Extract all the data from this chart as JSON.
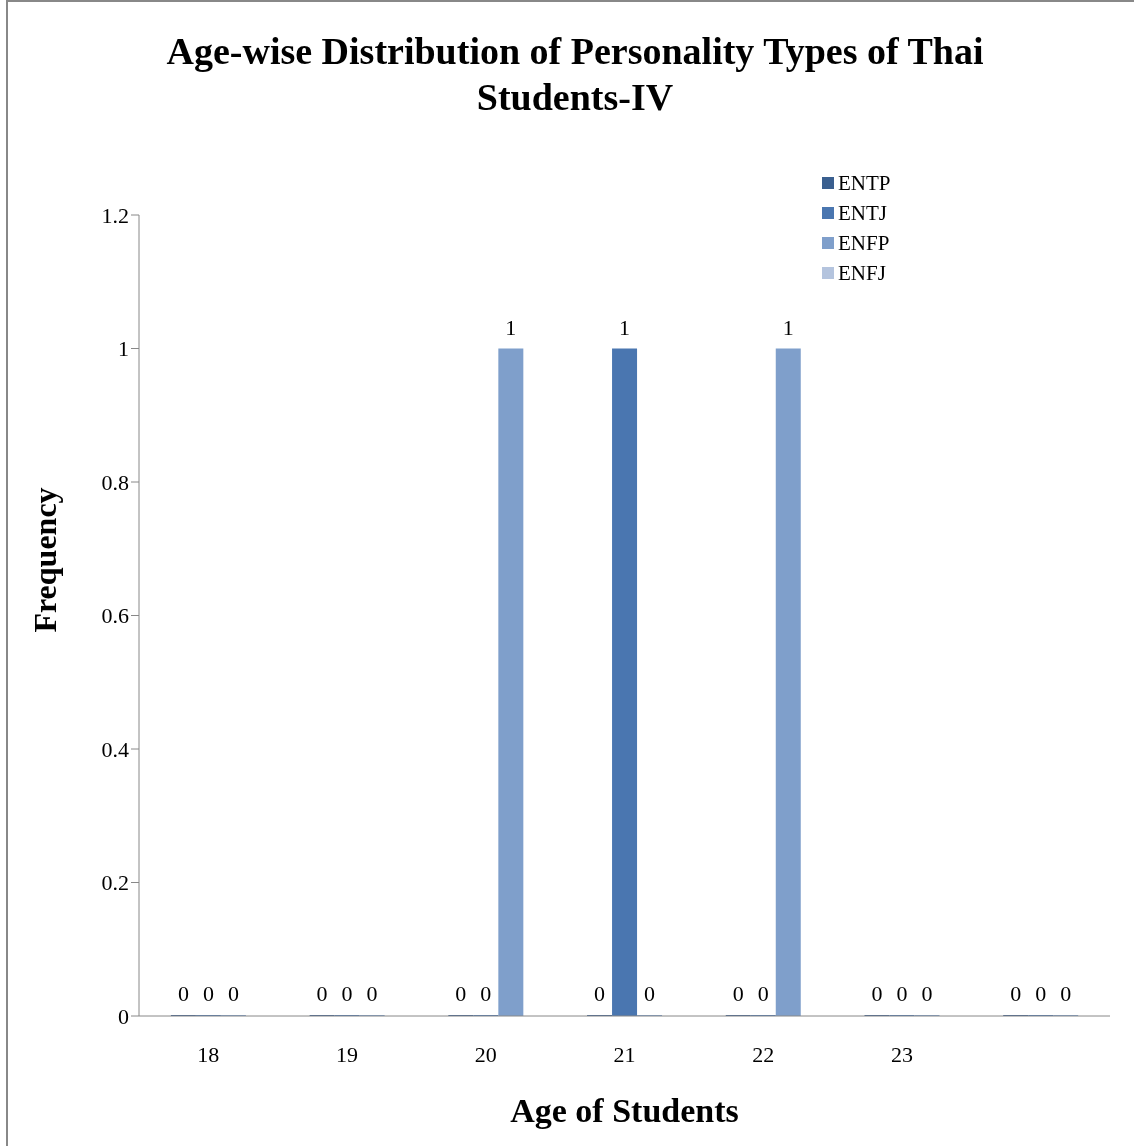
{
  "chart_data": {
    "type": "bar",
    "title": "Age-wise Distribution of Personality Types of Thai Students-IV",
    "xlabel": "Age of Students",
    "ylabel": "Frequency",
    "categories": [
      "18",
      "19",
      "20",
      "21",
      "22",
      "23",
      null
    ],
    "series": [
      {
        "name": "ENTP",
        "color": "#3a5f8f",
        "values": [
          0,
          0,
          0,
          0,
          0,
          0,
          0
        ]
      },
      {
        "name": "ENTJ",
        "color": "#4a76b0",
        "values": [
          0,
          0,
          0,
          1,
          0,
          0,
          0
        ]
      },
      {
        "name": "ENFP",
        "color": "#7f9fcb",
        "values": [
          0,
          0,
          1,
          0,
          1,
          0,
          0
        ]
      },
      {
        "name": "ENFJ",
        "color": "#b4c4de",
        "values": [
          null,
          null,
          null,
          null,
          null,
          null,
          null
        ]
      }
    ],
    "ylim": [
      0,
      1.2
    ],
    "yticks": [
      0,
      0.2,
      0.4,
      0.6,
      0.8,
      1,
      1.2
    ],
    "data_labels": true,
    "legend": "top right"
  }
}
